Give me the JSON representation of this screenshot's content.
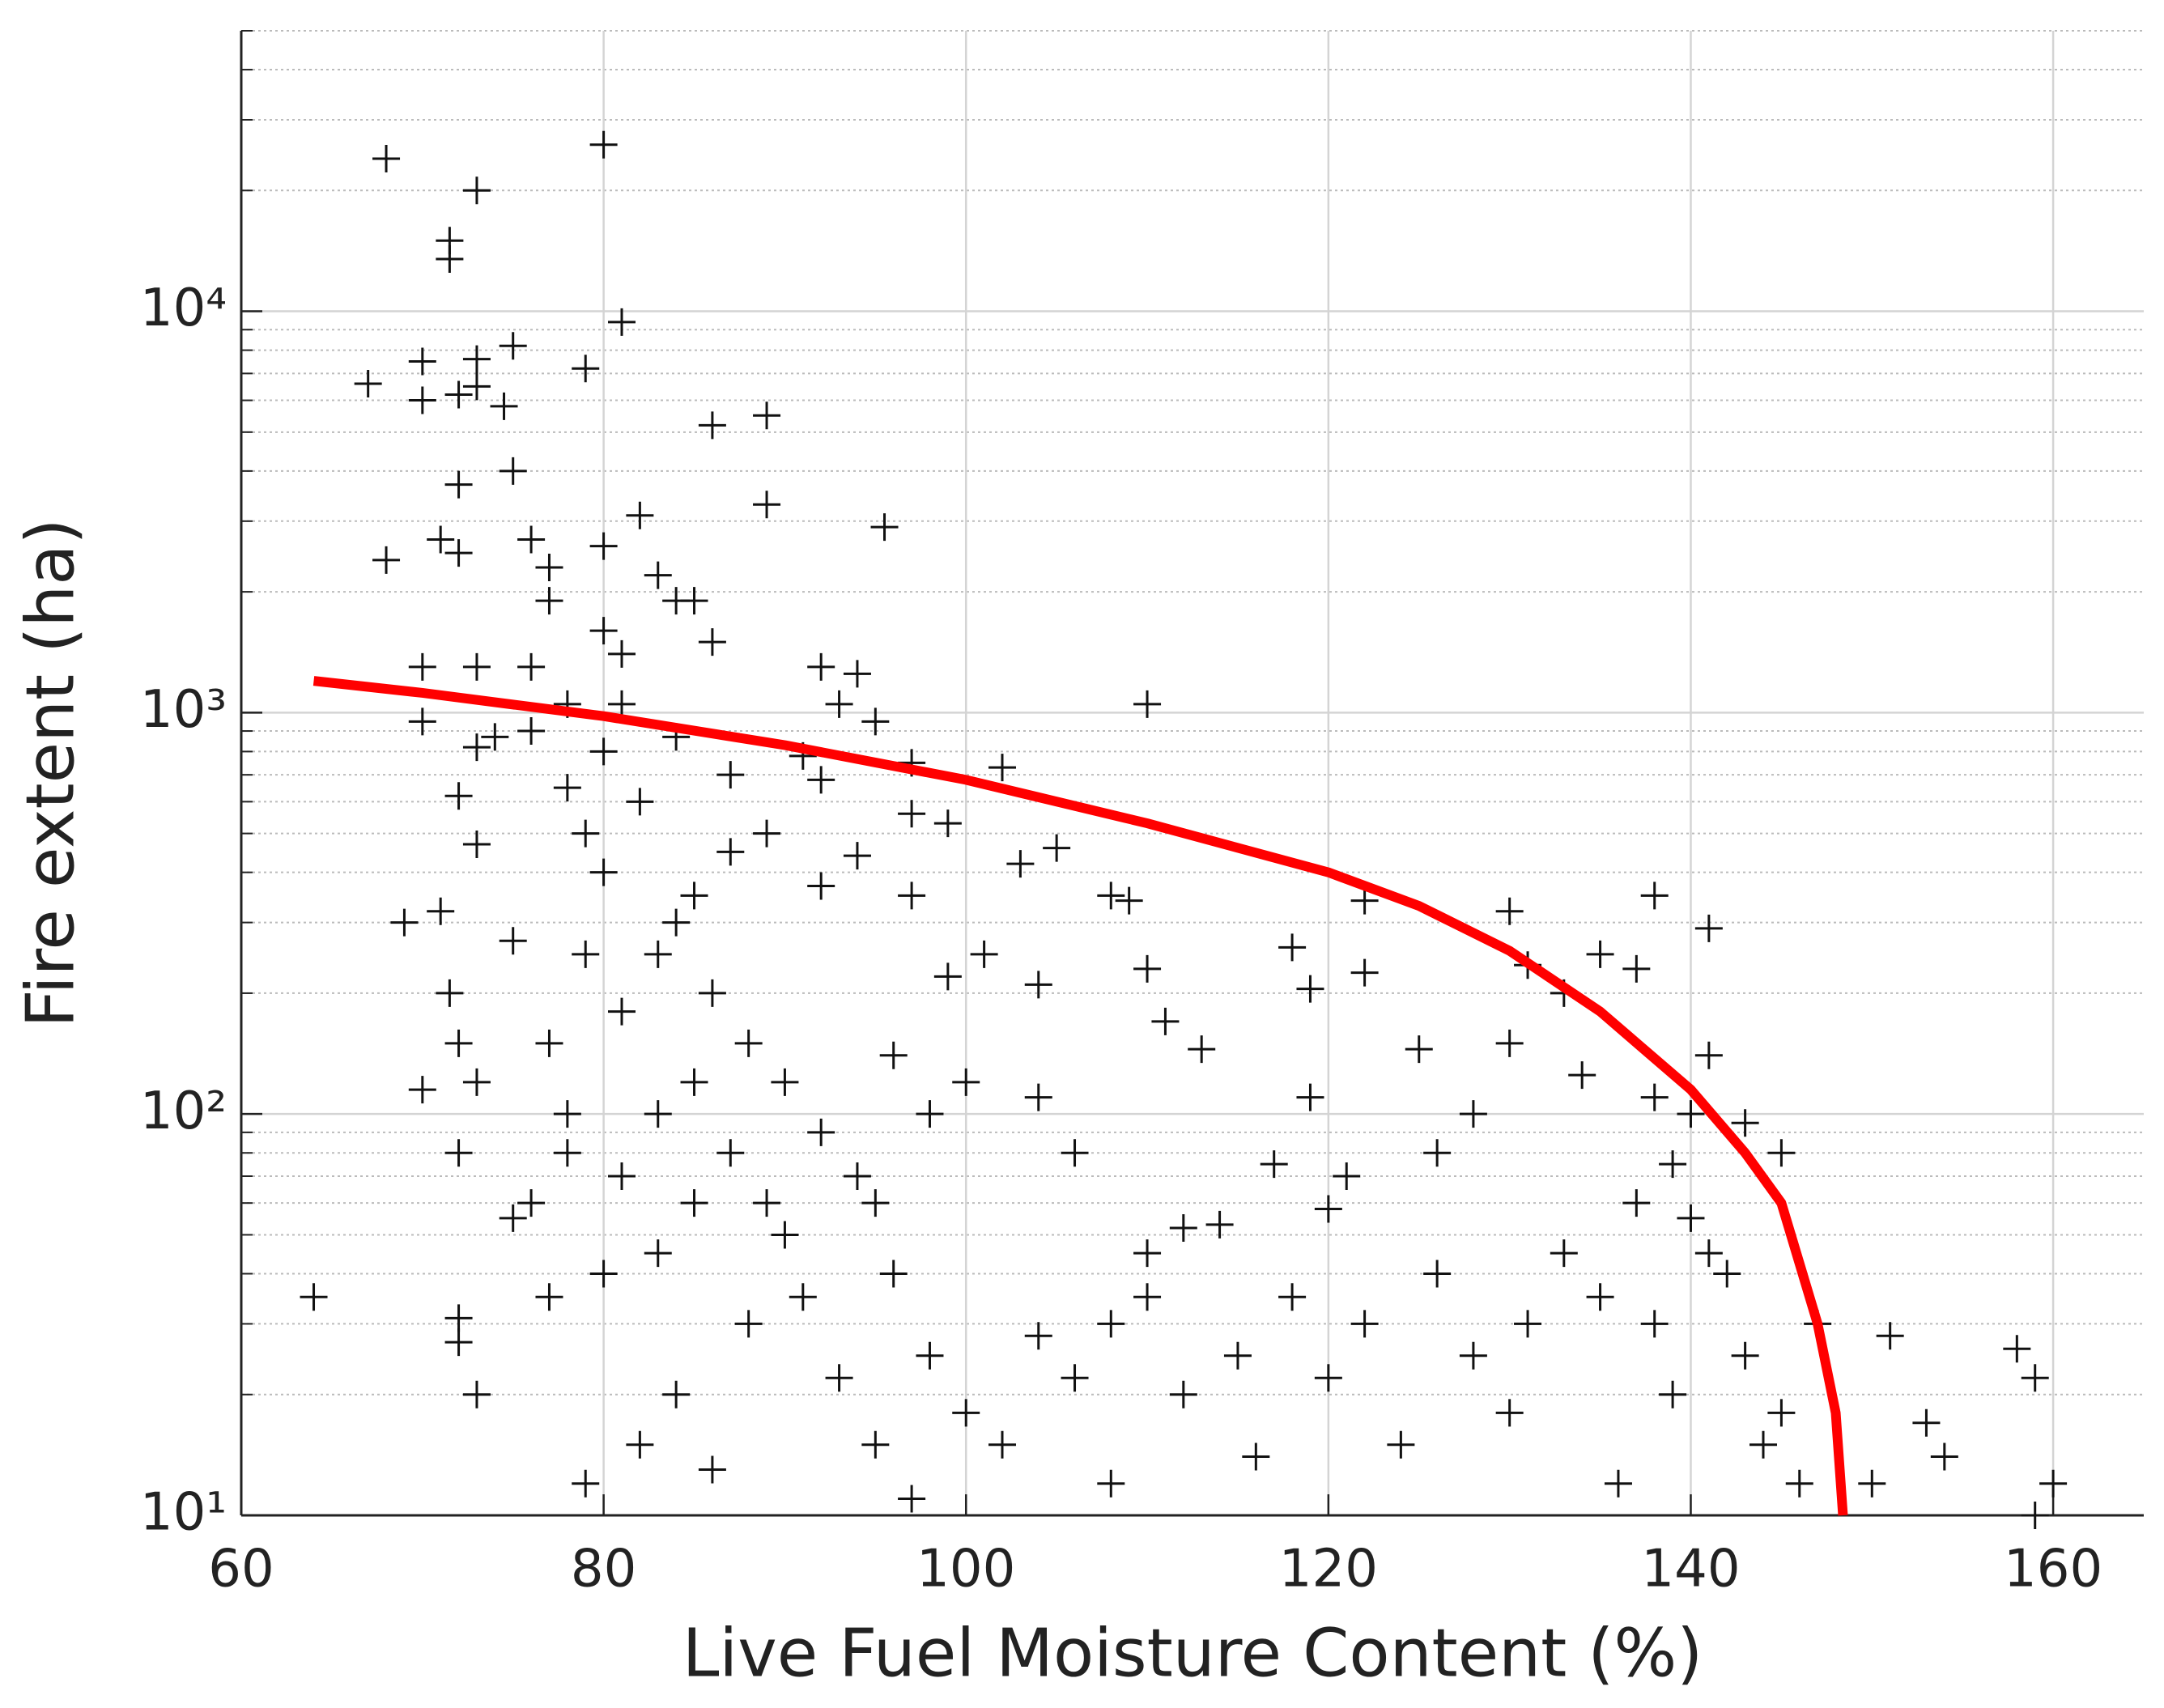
{
  "chart_data": {
    "type": "scatter",
    "xlabel": "Live Fuel Moisture Content (%)",
    "ylabel": "Fire extent (ha)",
    "xlim": [
      60,
      165
    ],
    "ylim": [
      10,
      50000
    ],
    "log_y": true,
    "grid": true,
    "xticks": [
      60,
      80,
      100,
      120,
      140,
      160
    ],
    "yticks": [
      {
        "value": 10,
        "label": "10¹"
      },
      {
        "value": 100,
        "label": "10²"
      },
      {
        "value": 1000,
        "label": "10³"
      },
      {
        "value": 10000,
        "label": "10⁴"
      }
    ],
    "minor_yticks": [
      20,
      30,
      40,
      50,
      60,
      70,
      80,
      90,
      200,
      300,
      400,
      500,
      600,
      700,
      800,
      900,
      2000,
      3000,
      4000,
      5000,
      6000,
      7000,
      8000,
      9000,
      20000,
      30000,
      40000,
      50000
    ],
    "color": "#111111",
    "x": [
      68,
      80,
      73,
      71.5,
      71.5,
      81,
      67,
      70,
      70,
      72,
      73,
      73,
      74.5,
      75,
      79,
      86,
      89,
      89,
      95.5,
      72,
      75,
      68,
      71,
      72,
      76,
      77,
      80,
      82,
      83,
      84,
      85,
      86,
      80,
      81,
      77,
      70,
      73,
      76,
      78,
      81,
      70,
      92,
      94,
      93,
      95,
      110,
      97,
      102,
      91,
      92,
      99,
      97,
      87,
      84,
      73,
      74,
      72,
      73,
      75,
      69,
      71,
      71.5,
      72,
      73,
      70,
      72,
      72,
      72,
      73,
      64,
      76,
      75,
      105,
      103,
      94,
      92,
      97,
      101,
      99,
      104,
      110,
      108,
      109,
      111,
      113,
      118,
      119,
      122,
      122,
      125,
      130,
      131,
      133,
      135,
      137,
      138,
      141,
      134,
      130,
      128,
      126,
      119,
      117,
      121,
      120,
      114,
      112,
      153,
      154,
      158,
      159,
      160,
      159,
      151,
      150,
      147,
      145,
      143,
      141,
      138,
      140,
      142,
      139,
      144,
      136,
      131,
      128,
      124,
      118,
      115,
      110,
      108,
      106,
      104,
      100,
      96,
      98,
      95,
      90,
      88,
      85,
      83,
      84,
      86,
      82,
      80,
      79,
      77,
      78,
      77,
      79,
      80,
      82,
      84,
      86,
      88,
      90,
      92,
      94,
      96,
      98,
      100,
      102,
      104,
      106,
      108,
      110,
      112,
      116,
      120,
      122,
      126,
      130,
      133,
      135,
      137,
      139,
      141,
      143,
      145,
      146,
      138,
      140,
      87,
      89,
      85,
      83,
      81,
      79,
      78,
      80,
      76,
      78,
      81,
      83,
      85,
      87,
      89,
      91,
      93,
      95,
      97
    ],
    "values": [
      24000,
      26000,
      20000,
      15000,
      13500,
      9400,
      6600,
      7500,
      6000,
      6200,
      7600,
      6500,
      5800,
      8200,
      7200,
      5200,
      5500,
      3300,
      2900,
      3700,
      4000,
      2400,
      2700,
      2500,
      2700,
      2300,
      2600,
      3100,
      2200,
      1900,
      1900,
      1500,
      1600,
      1400,
      1900,
      1300,
      1300,
      1300,
      1050,
      1050,
      950,
      1300,
      1250,
      1050,
      950,
      1050,
      750,
      730,
      780,
      680,
      530,
      560,
      700,
      870,
      820,
      870,
      620,
      470,
      270,
      300,
      320,
      200,
      150,
      120,
      115,
      80,
      31,
      27,
      20,
      35,
      60,
      55,
      460,
      420,
      440,
      370,
      350,
      250,
      220,
      210,
      230,
      350,
      340,
      170,
      145,
      260,
      205,
      340,
      225,
      145,
      320,
      235,
      200,
      250,
      230,
      350,
      290,
      125,
      150,
      100,
      80,
      110,
      75,
      70,
      58,
      53,
      52,
      17,
      14,
      26,
      22,
      12,
      10,
      28,
      12,
      30,
      80,
      95,
      140,
      110,
      55,
      40,
      20,
      15,
      12,
      30,
      25,
      15,
      35,
      25,
      45,
      30,
      80,
      110,
      120,
      140,
      100,
      60,
      50,
      30,
      60,
      100,
      20,
      13,
      15,
      40,
      12,
      35,
      80,
      150,
      250,
      400,
      600,
      300,
      200,
      150,
      120,
      90,
      70,
      40,
      25,
      18,
      15,
      28,
      22,
      12,
      35,
      20,
      14,
      22,
      30,
      40,
      18,
      45,
      35,
      60,
      75,
      45,
      25,
      18,
      12,
      30,
      100,
      450,
      500,
      350,
      250,
      180,
      500,
      650,
      800,
      900,
      100,
      70,
      45,
      120,
      80,
      60,
      35,
      22,
      15,
      11
    ],
    "fit": {
      "color": "#ff0000",
      "x": [
        64,
        70,
        80,
        90,
        100,
        110,
        120,
        125,
        130,
        135,
        140,
        143,
        145,
        147,
        148,
        148.4
      ],
      "values": [
        1200,
        1120,
        980,
        830,
        680,
        530,
        400,
        330,
        255,
        180,
        115,
        80,
        60,
        30,
        18,
        10
      ]
    }
  }
}
